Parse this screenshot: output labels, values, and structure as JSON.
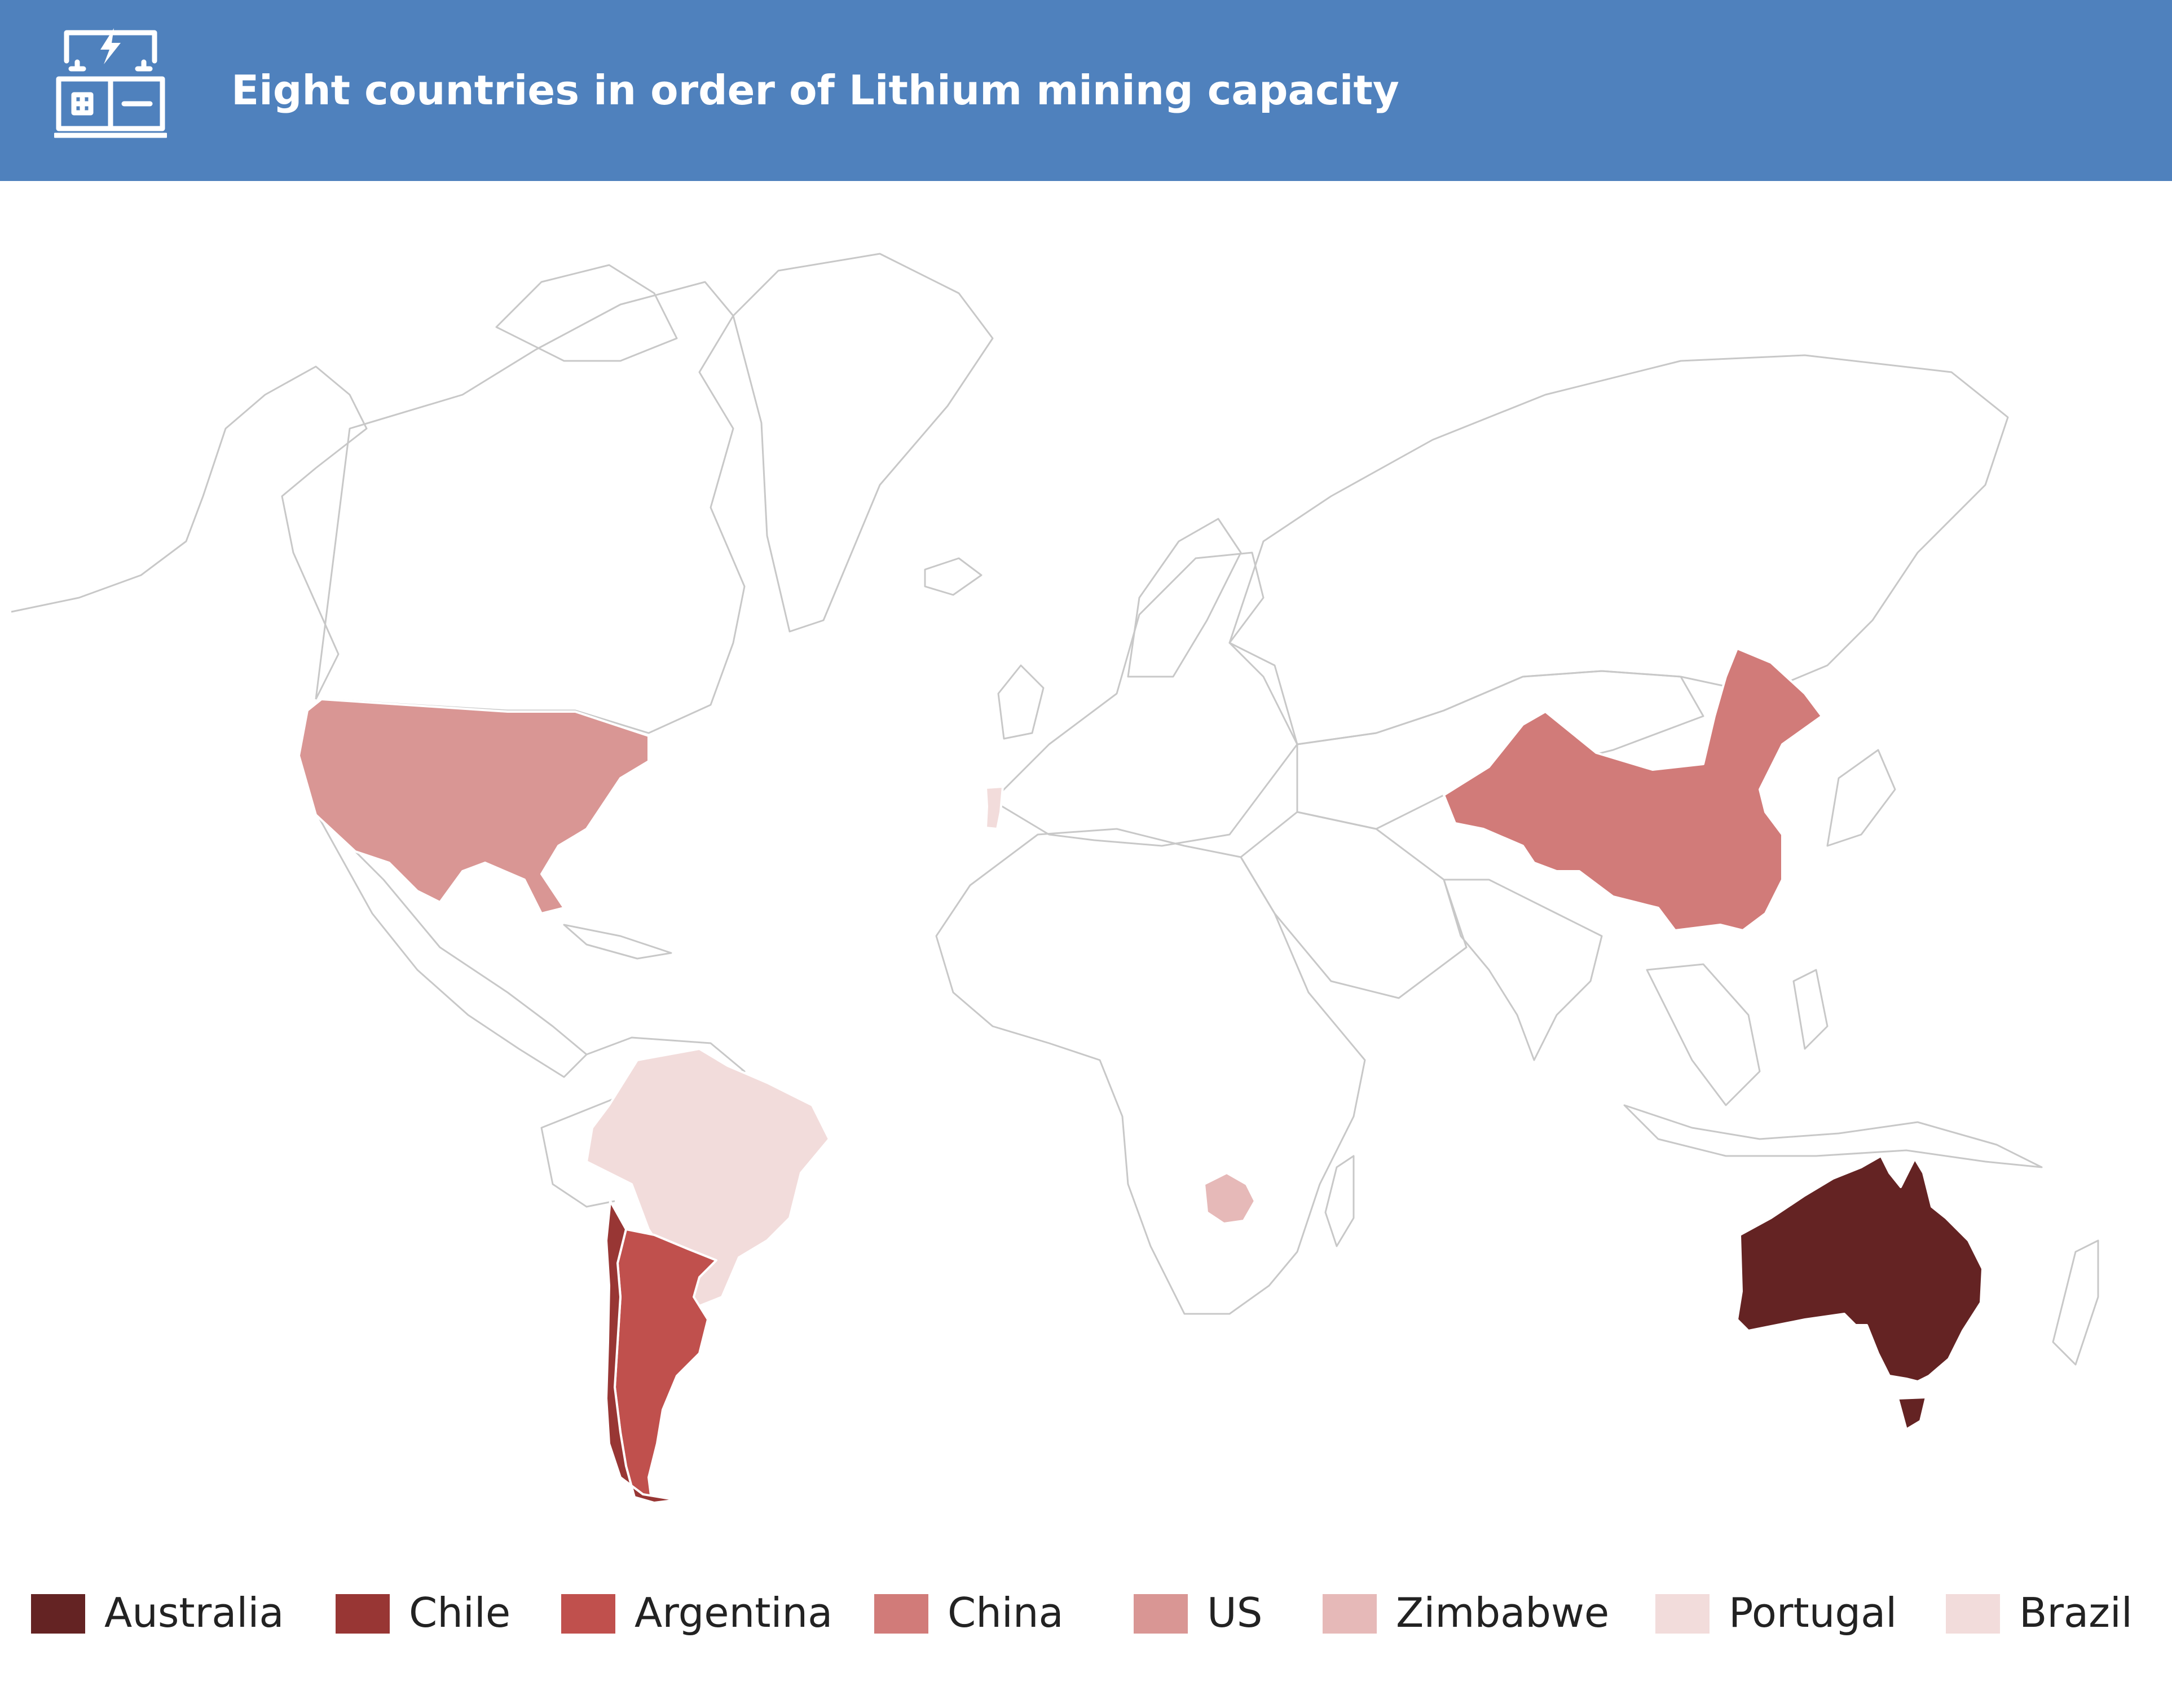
{
  "header": {
    "title": "Eight countries in order of Lithium mining capacity",
    "icon": "battery-icon",
    "background": "#4f81bd"
  },
  "map": {
    "type": "choropleth-world",
    "outline_color": "#c8c8c8",
    "countries": [
      {
        "name": "Australia",
        "rank": 1,
        "color": "#642323"
      },
      {
        "name": "Chile",
        "rank": 2,
        "color": "#983634"
      },
      {
        "name": "Argentina",
        "rank": 3,
        "color": "#c0504d"
      },
      {
        "name": "China",
        "rank": 4,
        "color": "#d17b79"
      },
      {
        "name": "US",
        "rank": 5,
        "color": "#d99694"
      },
      {
        "name": "Zimbabwe",
        "rank": 6,
        "color": "#e6b9b8"
      },
      {
        "name": "Portugal",
        "rank": 7,
        "color": "#f2dcdb"
      },
      {
        "name": "Brazil",
        "rank": 8,
        "color": "#f2dcdb"
      }
    ]
  },
  "legend": {
    "items": [
      {
        "label": "Australia",
        "color": "#642323"
      },
      {
        "label": "Chile",
        "color": "#983634"
      },
      {
        "label": "Argentina",
        "color": "#c0504d"
      },
      {
        "label": "China",
        "color": "#d17b79"
      },
      {
        "label": "US",
        "color": "#d99694"
      },
      {
        "label": "Zimbabwe",
        "color": "#e6b9b8"
      },
      {
        "label": "Portugal",
        "color": "#f2dcdb"
      },
      {
        "label": "Brazil",
        "color": "#f2dcdb"
      }
    ]
  }
}
